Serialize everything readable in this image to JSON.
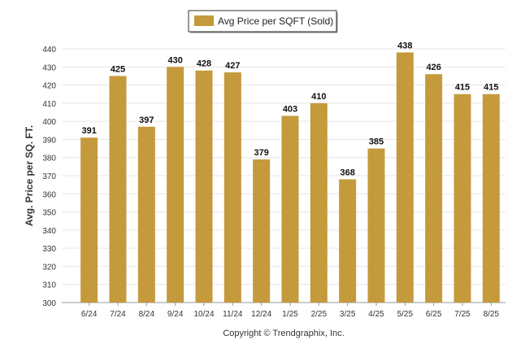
{
  "colors": {
    "bar": "#c49a3c",
    "grid": "#e6e6e6",
    "axis": "#999999",
    "legend_border": "#333333"
  },
  "legend": {
    "label": "Avg Price per SQFT (Sold)"
  },
  "footer": {
    "copyright": "Copyright © Trendgraphix, Inc."
  },
  "chart_data": {
    "type": "bar",
    "categories": [
      "6/24",
      "7/24",
      "8/24",
      "9/24",
      "10/24",
      "11/24",
      "12/24",
      "1/25",
      "2/25",
      "3/25",
      "4/25",
      "5/25",
      "6/25",
      "7/25",
      "8/25"
    ],
    "series": [
      {
        "name": "Avg Price per SQFT (Sold)",
        "values": [
          391,
          425,
          397,
          430,
          428,
          427,
          379,
          403,
          410,
          368,
          385,
          438,
          426,
          415,
          415
        ]
      }
    ],
    "ylabel": "Avg. Price per SQ. FT.",
    "xlabel": "",
    "ylim": [
      300,
      440
    ],
    "yticks": [
      300,
      310,
      320,
      330,
      340,
      350,
      360,
      370,
      380,
      390,
      400,
      410,
      420,
      430,
      440
    ],
    "grid": true,
    "legend_position": "top-center",
    "data_labels": true
  }
}
